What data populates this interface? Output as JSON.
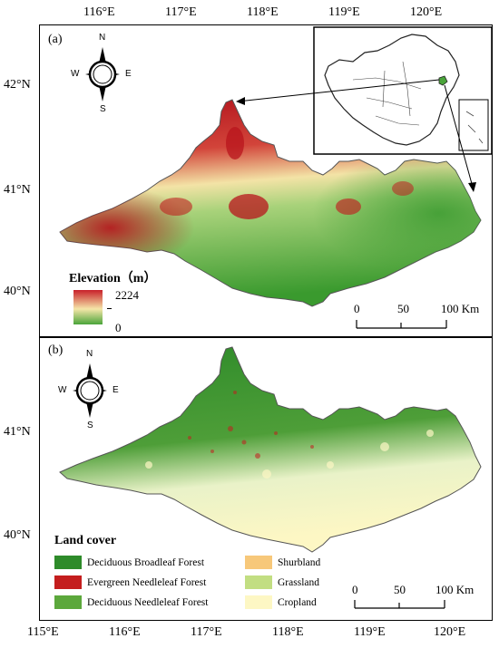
{
  "top_axis_labels": [
    "116°E",
    "117°E",
    "118°E",
    "119°E",
    "120°E"
  ],
  "bottom_axis_labels": [
    "115°E",
    "116°E",
    "117°E",
    "118°E",
    "119°E",
    "120°E"
  ],
  "panel_a": {
    "label": "(a)",
    "lat_labels": [
      "42°N",
      "41°N",
      "40°N"
    ],
    "compass": {
      "n": "N",
      "s": "S",
      "e": "E",
      "w": "W"
    },
    "legend_title": "Elevation（m）",
    "elev_max": "2224",
    "elev_min": "0",
    "scale": {
      "v0": "0",
      "v1": "50",
      "v2": "100 Km"
    },
    "colors": {
      "high": "#c8202a",
      "mid": "#f5e6a8",
      "low": "#4aa43a"
    }
  },
  "panel_b": {
    "label": "(b)",
    "lat_labels": [
      "41°N",
      "40°N"
    ],
    "compass": {
      "n": "N",
      "s": "S",
      "e": "E",
      "w": "W"
    },
    "legend_title": "Land cover",
    "legend_items": [
      {
        "label": "Deciduous Broadleaf Forest",
        "color": "#2e8b2a"
      },
      {
        "label": "Evergreen Needleleaf Forest",
        "color": "#c41e1e"
      },
      {
        "label": "Deciduous Needleleaf Forest",
        "color": "#5ca83c"
      },
      {
        "label": "Shurbland",
        "color": "#f7c87a"
      },
      {
        "label": "Grassland",
        "color": "#c2de82"
      },
      {
        "label": "Cropland",
        "color": "#fdf7c4"
      }
    ],
    "scale": {
      "v0": "0",
      "v1": "50",
      "v2": "100 Km"
    }
  }
}
